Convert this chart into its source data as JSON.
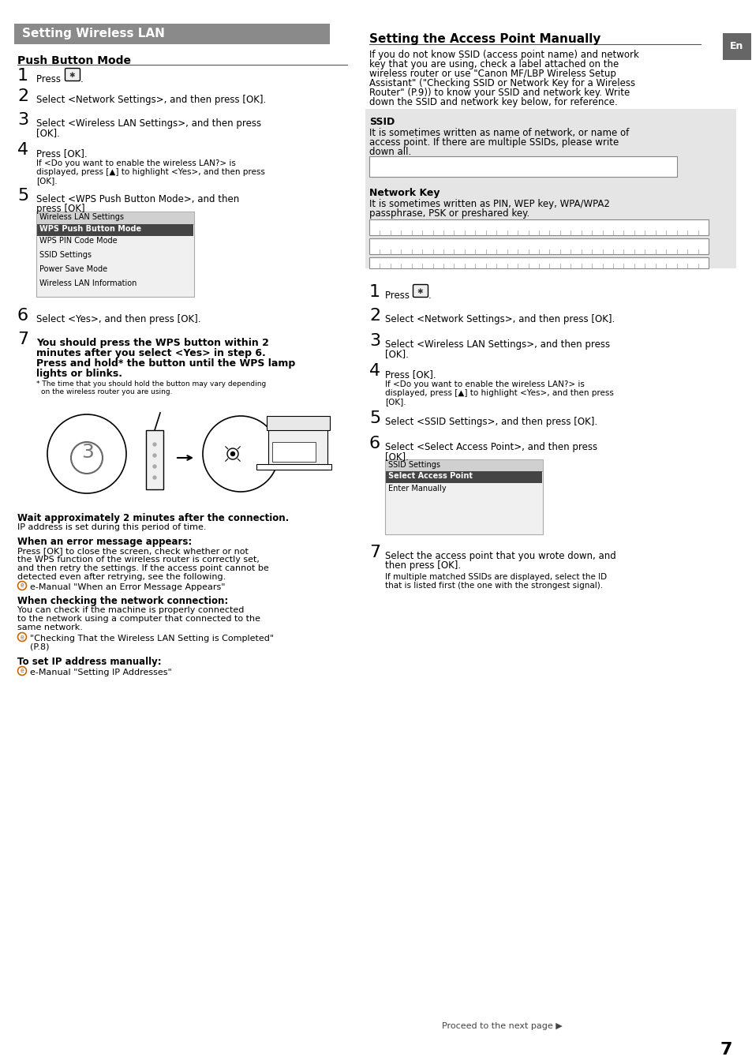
{
  "bg_color": "#ffffff",
  "header_bg": "#8a8a8a",
  "header_text": "Setting Wireless LAN",
  "header_text_color": "#ffffff",
  "left_col_title": "Push Button Mode",
  "right_col_title": "Setting the Access Point Manually",
  "en_tab_bg": "#666666",
  "en_tab_text": "En",
  "ssid_box_bg": "#e5e5e5",
  "menu_box_bg": "#f0f0f0",
  "menu_box_border": "#aaaaaa",
  "menu_title_bg": "#d0d0d0",
  "menu_highlight_bg": "#444444",
  "menu_highlight_text": "#ffffff",
  "page_number": "7",
  "footer_text": "Proceed to the next page",
  "e_icon_color": "#cc6600",
  "divider_color": "#888888",
  "line_color": "#333333",
  "tick_color": "#999999"
}
